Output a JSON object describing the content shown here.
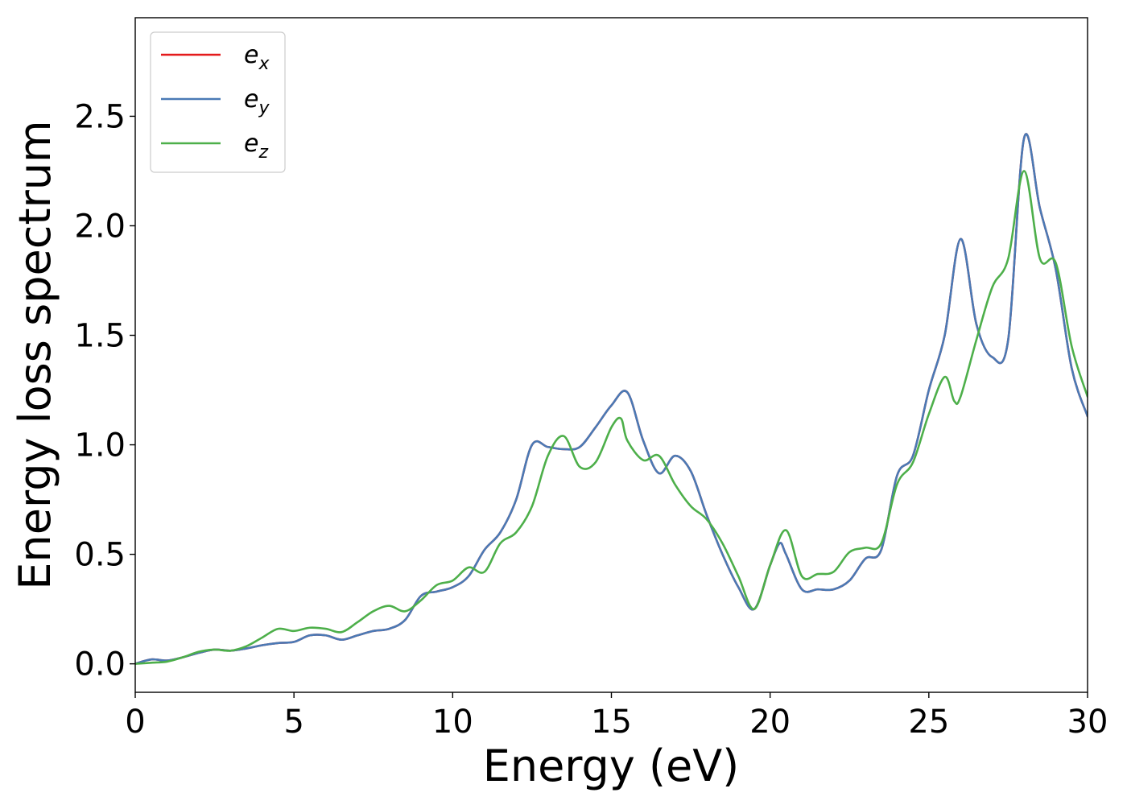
{
  "chart_data": {
    "type": "line",
    "xlabel": "Energy (eV)",
    "ylabel": "Energy loss spectrum",
    "xlim": [
      0,
      30
    ],
    "ylim": [
      -0.13,
      2.95
    ],
    "x_ticks": [
      0,
      5,
      10,
      15,
      20,
      25,
      30
    ],
    "x_tick_labels": [
      "0",
      "5",
      "10",
      "15",
      "20",
      "25",
      "30"
    ],
    "y_ticks": [
      0.0,
      0.5,
      1.0,
      1.5,
      2.0,
      2.5
    ],
    "y_tick_labels": [
      "0.0",
      "0.5",
      "1.0",
      "1.5",
      "2.0",
      "2.5"
    ],
    "grid": false,
    "legend_position": "top-left",
    "series": [
      {
        "name": "e_x",
        "legend_base": "e",
        "legend_sub": "x",
        "color": "#e41a1c",
        "x": [
          0,
          0.5,
          1.0,
          1.5,
          2.0,
          2.5,
          3.0,
          3.5,
          4.0,
          4.5,
          5.0,
          5.5,
          6.0,
          6.5,
          7.0,
          7.5,
          8.0,
          8.5,
          9.0,
          9.5,
          10.0,
          10.5,
          11.0,
          11.5,
          12.0,
          12.5,
          13.0,
          13.5,
          14.0,
          14.5,
          15.0,
          15.5,
          16.0,
          16.5,
          17.0,
          17.5,
          18.0,
          18.5,
          19.0,
          19.5,
          20.0,
          20.3,
          20.5,
          21.0,
          21.5,
          22.0,
          22.5,
          23.0,
          23.5,
          24.0,
          24.5,
          25.0,
          25.5,
          26.0,
          26.5,
          27.0,
          27.5,
          28.0,
          28.5,
          29.0,
          29.5,
          30.0
        ],
        "y": [
          0.0,
          0.02,
          0.015,
          0.03,
          0.05,
          0.065,
          0.06,
          0.07,
          0.085,
          0.095,
          0.1,
          0.13,
          0.13,
          0.11,
          0.13,
          0.15,
          0.16,
          0.2,
          0.31,
          0.33,
          0.35,
          0.4,
          0.52,
          0.6,
          0.75,
          1.0,
          0.99,
          0.98,
          0.99,
          1.08,
          1.18,
          1.24,
          1.02,
          0.87,
          0.95,
          0.88,
          0.68,
          0.5,
          0.35,
          0.25,
          0.45,
          0.55,
          0.5,
          0.34,
          0.34,
          0.34,
          0.38,
          0.48,
          0.52,
          0.86,
          0.95,
          1.25,
          1.5,
          1.94,
          1.55,
          1.4,
          1.48,
          2.4,
          2.08,
          1.8,
          1.35,
          1.13
        ]
      },
      {
        "name": "e_y",
        "legend_base": "e",
        "legend_sub": "y",
        "color": "#4a7ab5",
        "x": [
          0,
          0.5,
          1.0,
          1.5,
          2.0,
          2.5,
          3.0,
          3.5,
          4.0,
          4.5,
          5.0,
          5.5,
          6.0,
          6.5,
          7.0,
          7.5,
          8.0,
          8.5,
          9.0,
          9.5,
          10.0,
          10.5,
          11.0,
          11.5,
          12.0,
          12.5,
          13.0,
          13.5,
          14.0,
          14.5,
          15.0,
          15.5,
          16.0,
          16.5,
          17.0,
          17.5,
          18.0,
          18.5,
          19.0,
          19.5,
          20.0,
          20.3,
          20.5,
          21.0,
          21.5,
          22.0,
          22.5,
          23.0,
          23.5,
          24.0,
          24.5,
          25.0,
          25.5,
          26.0,
          26.5,
          27.0,
          27.5,
          28.0,
          28.5,
          29.0,
          29.5,
          30.0
        ],
        "y": [
          0.0,
          0.02,
          0.015,
          0.03,
          0.05,
          0.065,
          0.06,
          0.07,
          0.085,
          0.095,
          0.1,
          0.13,
          0.13,
          0.11,
          0.13,
          0.15,
          0.16,
          0.2,
          0.31,
          0.33,
          0.35,
          0.4,
          0.52,
          0.6,
          0.75,
          1.0,
          0.99,
          0.98,
          0.99,
          1.08,
          1.18,
          1.24,
          1.02,
          0.87,
          0.95,
          0.88,
          0.68,
          0.5,
          0.35,
          0.25,
          0.45,
          0.55,
          0.5,
          0.34,
          0.34,
          0.34,
          0.38,
          0.48,
          0.52,
          0.86,
          0.95,
          1.25,
          1.5,
          1.94,
          1.55,
          1.4,
          1.48,
          2.4,
          2.08,
          1.8,
          1.35,
          1.13
        ]
      },
      {
        "name": "e_z",
        "legend_base": "e",
        "legend_sub": "z",
        "color": "#4daf4a",
        "x": [
          0,
          0.5,
          1.0,
          1.5,
          2.0,
          2.5,
          3.0,
          3.5,
          4.0,
          4.5,
          5.0,
          5.5,
          6.0,
          6.5,
          7.0,
          7.5,
          8.0,
          8.5,
          9.0,
          9.5,
          10.0,
          10.5,
          11.0,
          11.5,
          12.0,
          12.5,
          13.0,
          13.5,
          14.0,
          14.5,
          15.0,
          15.3,
          15.5,
          16.0,
          16.5,
          17.0,
          17.5,
          18.0,
          18.5,
          19.0,
          19.5,
          20.0,
          20.5,
          21.0,
          21.5,
          22.0,
          22.5,
          23.0,
          23.5,
          24.0,
          24.5,
          25.0,
          25.5,
          25.8,
          26.0,
          26.5,
          27.0,
          27.5,
          28.0,
          28.5,
          29.0,
          29.5,
          30.0
        ],
        "y": [
          0.0,
          0.005,
          0.01,
          0.03,
          0.055,
          0.065,
          0.06,
          0.08,
          0.12,
          0.16,
          0.15,
          0.165,
          0.16,
          0.145,
          0.19,
          0.24,
          0.265,
          0.24,
          0.29,
          0.36,
          0.38,
          0.44,
          0.42,
          0.55,
          0.6,
          0.72,
          0.95,
          1.04,
          0.9,
          0.92,
          1.08,
          1.12,
          1.02,
          0.93,
          0.95,
          0.82,
          0.72,
          0.66,
          0.55,
          0.4,
          0.25,
          0.45,
          0.61,
          0.4,
          0.41,
          0.42,
          0.51,
          0.53,
          0.55,
          0.82,
          0.92,
          1.14,
          1.31,
          1.2,
          1.22,
          1.48,
          1.72,
          1.85,
          2.25,
          1.85,
          1.83,
          1.45,
          1.22
        ]
      }
    ]
  }
}
